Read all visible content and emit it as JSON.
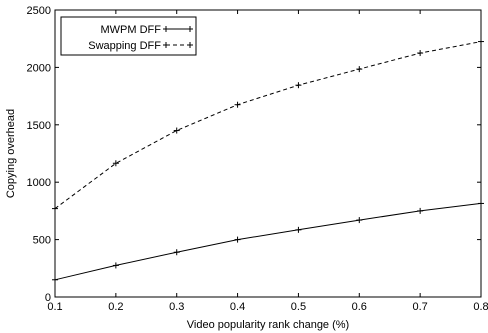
{
  "chart_data": {
    "type": "line",
    "title": "",
    "xlabel": "Video popularity rank change (%)",
    "ylabel": "Copying overhead",
    "xlim": [
      0.1,
      0.8
    ],
    "ylim": [
      0,
      2500
    ],
    "x_ticks": [
      "0.1",
      "0.2",
      "0.3",
      "0.4",
      "0.5",
      "0.6",
      "0.7",
      "0.8"
    ],
    "y_ticks": [
      "0",
      "500",
      "1000",
      "1500",
      "2000",
      "2500"
    ],
    "grid": false,
    "legend_position": "top-left",
    "x": [
      0.1,
      0.2,
      0.3,
      0.4,
      0.5,
      0.6,
      0.7,
      0.8
    ],
    "series": [
      {
        "name": "MWPM DFF",
        "style": "solid",
        "marker": "+",
        "color": "#000000",
        "values": [
          150,
          275,
          390,
          500,
          585,
          670,
          750,
          815
        ]
      },
      {
        "name": "Swapping DFF",
        "style": "dashed",
        "marker": "+",
        "color": "#000000",
        "values": [
          770,
          1165,
          1450,
          1675,
          1845,
          1985,
          2125,
          2225
        ]
      }
    ]
  }
}
